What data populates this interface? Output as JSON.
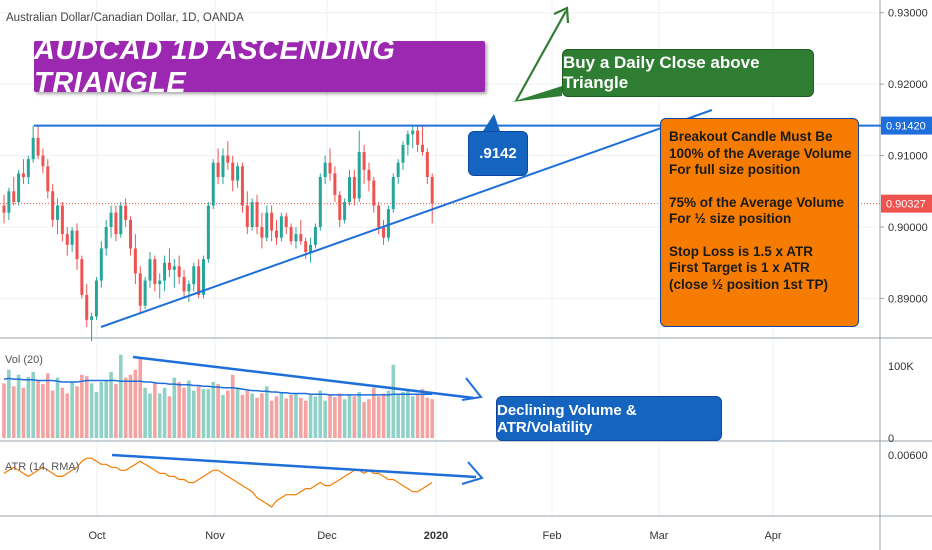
{
  "header": {
    "symbol_title": "Australian Dollar/Canadian Dollar, 1D, OANDA"
  },
  "annotations": {
    "banner": "AUDCAD 1D ASCENDING TRIANGLE",
    "buy_text": "Buy a Daily Close above Triangle",
    "level_text": ".9142",
    "rules": [
      "Breakout Candle Must Be",
      "100% of the Average Volume",
      "For full size position",
      "",
      "75% of the Average Volume",
      "For ½ size position",
      "",
      "Stop Loss is 1.5 x ATR",
      "First Target is 1 x ATR",
      "(close ½ position 1st TP)"
    ],
    "declining_text": "Declining Volume & ATR/Volatility"
  },
  "indicators": {
    "volume_label": "Vol (20)",
    "atr_label": "ATR (14, RMA)"
  },
  "colors": {
    "up": "#26a69a",
    "down": "#ef5350",
    "trendline": "#1e6fd9",
    "banner": "#9c27b0",
    "buy_box": "#2e7d32",
    "rules_box": "#f57c00",
    "atr_line": "#f57c00",
    "price_tag_last": "#ef5350",
    "price_tag_level": "#1e6fd9"
  },
  "chart_data": [
    {
      "type": "candlestick",
      "title": "Australian Dollar/Canadian Dollar, 1D, OANDA",
      "price_axis_ticks": [
        "0.93000",
        "0.92000",
        "0.91000",
        "0.90000",
        "0.89000"
      ],
      "price_ticks_values": [
        0.93,
        0.92,
        0.91,
        0.9,
        0.89
      ],
      "ylim": [
        0.8825,
        0.9315
      ],
      "time_axis_ticks": [
        "Oct",
        "Nov",
        "Dec",
        "2020",
        "Feb",
        "Mar",
        "Apr"
      ],
      "resistance_level": 0.9142,
      "resistance_label": "0.91420",
      "last_price": 0.90327,
      "last_price_label": "0.90327",
      "ohlc": [
        [
          0.903,
          0.9045,
          0.9005,
          0.902
        ],
        [
          0.902,
          0.9055,
          0.901,
          0.905
        ],
        [
          0.905,
          0.907,
          0.903,
          0.9035
        ],
        [
          0.9035,
          0.908,
          0.903,
          0.9075
        ],
        [
          0.9075,
          0.9095,
          0.906,
          0.907
        ],
        [
          0.907,
          0.91,
          0.906,
          0.9095
        ],
        [
          0.9095,
          0.9142,
          0.909,
          0.9125
        ],
        [
          0.9125,
          0.9142,
          0.9095,
          0.91
        ],
        [
          0.91,
          0.911,
          0.9075,
          0.9085
        ],
        [
          0.9085,
          0.9095,
          0.904,
          0.905
        ],
        [
          0.905,
          0.906,
          0.9,
          0.901
        ],
        [
          0.901,
          0.904,
          0.899,
          0.903
        ],
        [
          0.903,
          0.9035,
          0.898,
          0.899
        ],
        [
          0.899,
          0.9,
          0.896,
          0.8975
        ],
        [
          0.8975,
          0.9,
          0.8965,
          0.8995
        ],
        [
          0.8995,
          0.9005,
          0.894,
          0.8955
        ],
        [
          0.8955,
          0.896,
          0.89,
          0.8905
        ],
        [
          0.8905,
          0.892,
          0.886,
          0.887
        ],
        [
          0.887,
          0.888,
          0.884,
          0.8875
        ],
        [
          0.8875,
          0.893,
          0.887,
          0.8925
        ],
        [
          0.8925,
          0.898,
          0.8915,
          0.897
        ],
        [
          0.897,
          0.901,
          0.896,
          0.9
        ],
        [
          0.9,
          0.903,
          0.8985,
          0.902
        ],
        [
          0.902,
          0.903,
          0.898,
          0.899
        ],
        [
          0.899,
          0.9035,
          0.8985,
          0.903
        ],
        [
          0.903,
          0.904,
          0.9,
          0.901
        ],
        [
          0.901,
          0.9015,
          0.896,
          0.897
        ],
        [
          0.897,
          0.899,
          0.892,
          0.8935
        ],
        [
          0.8935,
          0.8945,
          0.888,
          0.889
        ],
        [
          0.889,
          0.893,
          0.8885,
          0.8925
        ],
        [
          0.8925,
          0.8965,
          0.8915,
          0.8955
        ],
        [
          0.8955,
          0.896,
          0.891,
          0.892
        ],
        [
          0.892,
          0.8935,
          0.89,
          0.8925
        ],
        [
          0.8925,
          0.896,
          0.891,
          0.895
        ],
        [
          0.895,
          0.897,
          0.893,
          0.894
        ],
        [
          0.894,
          0.8955,
          0.8915,
          0.8945
        ],
        [
          0.8945,
          0.896,
          0.892,
          0.893
        ],
        [
          0.893,
          0.894,
          0.89,
          0.891
        ],
        [
          0.891,
          0.8925,
          0.8895,
          0.892
        ],
        [
          0.892,
          0.895,
          0.891,
          0.8945
        ],
        [
          0.8945,
          0.8955,
          0.89,
          0.8905
        ],
        [
          0.8905,
          0.896,
          0.89,
          0.8955
        ],
        [
          0.8955,
          0.9035,
          0.895,
          0.903
        ],
        [
          0.903,
          0.9095,
          0.9025,
          0.909
        ],
        [
          0.909,
          0.911,
          0.906,
          0.907
        ],
        [
          0.907,
          0.911,
          0.906,
          0.91
        ],
        [
          0.91,
          0.912,
          0.908,
          0.909
        ],
        [
          0.909,
          0.91,
          0.905,
          0.9065
        ],
        [
          0.9065,
          0.909,
          0.9055,
          0.9085
        ],
        [
          0.9085,
          0.909,
          0.902,
          0.903
        ],
        [
          0.903,
          0.905,
          0.899,
          0.9
        ],
        [
          0.9,
          0.904,
          0.8995,
          0.9035
        ],
        [
          0.9035,
          0.9045,
          0.899,
          0.9
        ],
        [
          0.9,
          0.902,
          0.897,
          0.8985
        ],
        [
          0.8985,
          0.903,
          0.898,
          0.902
        ],
        [
          0.902,
          0.903,
          0.898,
          0.8995
        ],
        [
          0.8995,
          0.901,
          0.8975,
          0.8985
        ],
        [
          0.8985,
          0.902,
          0.898,
          0.9015
        ],
        [
          0.9015,
          0.902,
          0.899,
          0.9
        ],
        [
          0.9,
          0.9005,
          0.8975,
          0.898
        ],
        [
          0.898,
          0.9,
          0.897,
          0.899
        ],
        [
          0.899,
          0.901,
          0.8975,
          0.898
        ],
        [
          0.898,
          0.8985,
          0.8955,
          0.8965
        ],
        [
          0.8965,
          0.8985,
          0.895,
          0.8975
        ],
        [
          0.8975,
          0.9005,
          0.897,
          0.9
        ],
        [
          0.9,
          0.9075,
          0.8995,
          0.907
        ],
        [
          0.907,
          0.91,
          0.906,
          0.909
        ],
        [
          0.909,
          0.911,
          0.9065,
          0.9075
        ],
        [
          0.9075,
          0.9085,
          0.9035,
          0.9045
        ],
        [
          0.9045,
          0.905,
          0.9,
          0.901
        ],
        [
          0.901,
          0.904,
          0.9005,
          0.9035
        ],
        [
          0.9035,
          0.908,
          0.903,
          0.907
        ],
        [
          0.907,
          0.908,
          0.903,
          0.904
        ],
        [
          0.904,
          0.9135,
          0.9035,
          0.9105
        ],
        [
          0.9105,
          0.9115,
          0.906,
          0.908
        ],
        [
          0.908,
          0.909,
          0.905,
          0.9065
        ],
        [
          0.9065,
          0.907,
          0.902,
          0.903
        ],
        [
          0.903,
          0.9035,
          0.899,
          0.9
        ],
        [
          0.9,
          0.901,
          0.8975,
          0.8985
        ],
        [
          0.8985,
          0.903,
          0.898,
          0.9025
        ],
        [
          0.9025,
          0.9075,
          0.902,
          0.907
        ],
        [
          0.907,
          0.9095,
          0.906,
          0.909
        ],
        [
          0.909,
          0.912,
          0.908,
          0.9115
        ],
        [
          0.9115,
          0.9135,
          0.91,
          0.913
        ],
        [
          0.913,
          0.9142,
          0.911,
          0.9135
        ],
        [
          0.9135,
          0.9142,
          0.9105,
          0.9115
        ],
        [
          0.9115,
          0.9142,
          0.91,
          0.9105
        ],
        [
          0.9105,
          0.911,
          0.906,
          0.907
        ],
        [
          0.907,
          0.9075,
          0.9005,
          0.90327
        ]
      ]
    },
    {
      "type": "bar",
      "title": "Vol (20)",
      "axis_ticks": [
        "100K",
        "0"
      ],
      "ylim": [
        0,
        135000
      ],
      "values": [
        76000,
        95000,
        72000,
        88000,
        70000,
        85000,
        92000,
        80000,
        75000,
        90000,
        66000,
        84000,
        70000,
        62000,
        78000,
        72000,
        88000,
        86000,
        76000,
        64000,
        78000,
        80000,
        92000,
        75000,
        116000,
        84000,
        88000,
        95000,
        110000,
        70000,
        62000,
        76000,
        62000,
        70000,
        58000,
        84000,
        78000,
        70000,
        80000,
        66000,
        72000,
        68000,
        68000,
        78000,
        75000,
        60000,
        66000,
        88000,
        70000,
        60000,
        66000,
        62000,
        56000,
        62000,
        72000,
        52000,
        58000,
        64000,
        55000,
        60000,
        62000,
        56000,
        52000,
        60000,
        58000,
        66000,
        52000,
        60000,
        57000,
        62000,
        54000,
        60000,
        58000,
        64000,
        50000,
        54000,
        70000,
        58000,
        62000,
        66000,
        102000,
        60000,
        64000,
        66000,
        58000,
        62000,
        68000,
        56000,
        54000
      ],
      "ma_values": [
        82000,
        83000,
        82000,
        82000,
        81000,
        81000,
        81000,
        80000,
        80000,
        80000,
        80000,
        79000,
        78000,
        78000,
        78000,
        78000,
        79000,
        80000,
        80000,
        80000,
        80000,
        80000,
        80000,
        80000,
        79000,
        79000,
        79000,
        79000,
        79000,
        78000,
        78000,
        77000,
        76000,
        76000,
        75000,
        75000,
        74000,
        74000,
        74000,
        73000,
        73000,
        72000,
        72000,
        71000,
        71000,
        70000,
        70000,
        70000,
        69000,
        68000,
        67000,
        66000,
        66000,
        65000,
        65000,
        64000,
        64000,
        63000,
        63000,
        62000,
        62000,
        62000,
        62000,
        61000,
        61000,
        61000,
        61000,
        60000,
        60000,
        60000,
        60000,
        60000,
        60000,
        60000,
        60000,
        60000,
        60000,
        60000,
        60000,
        60000,
        61000,
        61000,
        61000,
        61000,
        61000,
        61000,
        61000,
        61000,
        61000
      ]
    },
    {
      "type": "line",
      "title": "ATR (14, RMA)",
      "axis_ticks": [
        "0.00600"
      ],
      "ylim": [
        0.004,
        0.0063
      ],
      "values": [
        0.0054,
        0.0055,
        0.0056,
        0.0055,
        0.0054,
        0.0053,
        0.0054,
        0.0055,
        0.0056,
        0.0055,
        0.0054,
        0.0053,
        0.0053,
        0.0054,
        0.0055,
        0.0056,
        0.0058,
        0.0059,
        0.0059,
        0.0058,
        0.0057,
        0.0057,
        0.0056,
        0.0056,
        0.0055,
        0.0055,
        0.0056,
        0.0057,
        0.0058,
        0.0057,
        0.0056,
        0.0055,
        0.0054,
        0.0054,
        0.0053,
        0.0053,
        0.0052,
        0.0052,
        0.0051,
        0.0051,
        0.0052,
        0.0053,
        0.0054,
        0.0055,
        0.0055,
        0.0054,
        0.0053,
        0.0052,
        0.0051,
        0.005,
        0.0049,
        0.0048,
        0.0046,
        0.0045,
        0.0044,
        0.0043,
        0.0045,
        0.0046,
        0.0047,
        0.0047,
        0.0047,
        0.0048,
        0.0049,
        0.0049,
        0.005,
        0.0051,
        0.005,
        0.005,
        0.0051,
        0.0052,
        0.0053,
        0.0054,
        0.0055,
        0.0055,
        0.0054,
        0.0055,
        0.0054,
        0.0054,
        0.0053,
        0.0052,
        0.0052,
        0.0051,
        0.005,
        0.0049,
        0.0048,
        0.0048,
        0.0049,
        0.005,
        0.0051
      ]
    }
  ]
}
